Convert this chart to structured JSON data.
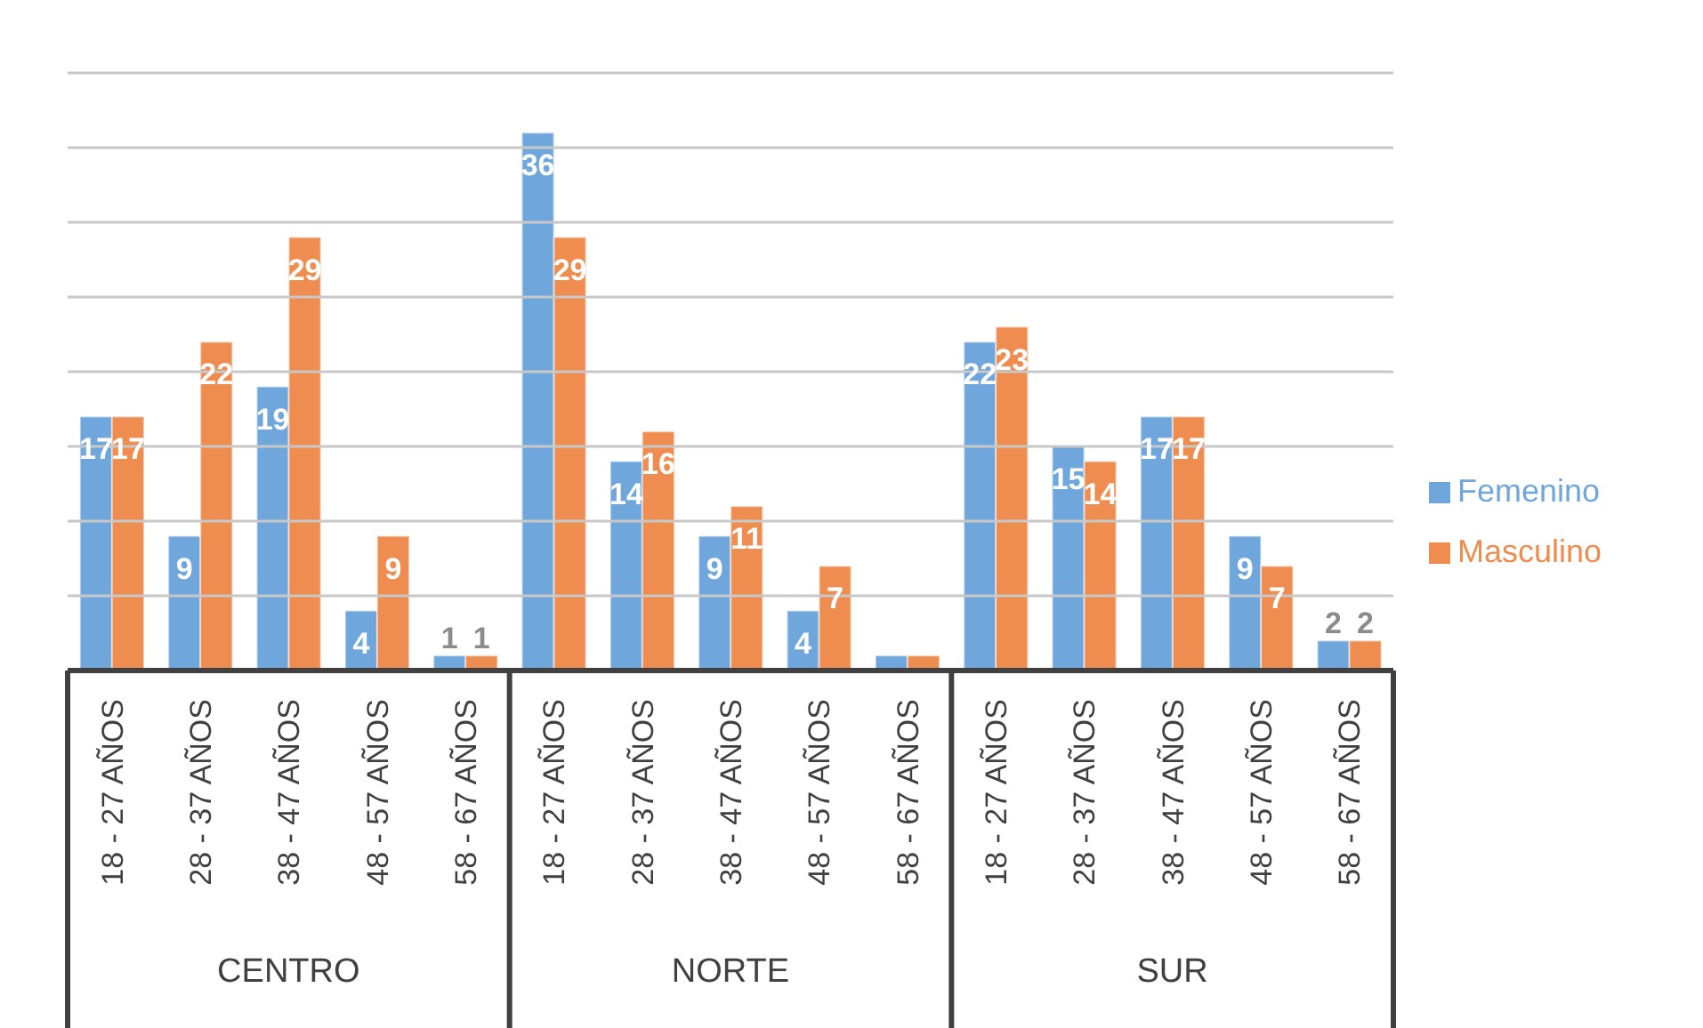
{
  "chart_data": {
    "type": "bar",
    "categories": [
      "18 - 27 AÑOS",
      "28 - 37 AÑOS",
      "38 - 47 AÑOS",
      "48 - 57 AÑOS",
      "58 - 67 AÑOS",
      "18 - 27 AÑOS",
      "28 - 37 AÑOS",
      "38 - 47 AÑOS",
      "48 - 57 AÑOS",
      "58 - 67 AÑOS",
      "18 - 27 AÑOS",
      "28 - 37 AÑOS",
      "38 - 47 AÑOS",
      "48 - 57 AÑOS",
      "58 - 67 AÑOS"
    ],
    "series": [
      {
        "name": "Femenino",
        "color": "#6fa6dc",
        "values": [
          17,
          9,
          19,
          4,
          1,
          36,
          14,
          9,
          4,
          1,
          22,
          15,
          17,
          9,
          2
        ],
        "value_labels": [
          "17",
          "9",
          "19",
          "4",
          "1",
          "36",
          "14",
          "9",
          "4",
          null,
          "22",
          "15",
          "17",
          "9",
          "2"
        ]
      },
      {
        "name": "Masculino",
        "color": "#ef8c4f",
        "values": [
          17,
          22,
          29,
          9,
          1,
          29,
          16,
          11,
          7,
          1,
          23,
          14,
          17,
          7,
          2
        ],
        "value_labels": [
          "17",
          "22",
          "29",
          "9",
          "1",
          "29",
          "16",
          "11",
          "7",
          null,
          "23",
          "14",
          "17",
          "7",
          "2"
        ]
      }
    ],
    "annotations": [
      "CENTRO",
      "NORTE",
      "SUR"
    ],
    "ylim": [
      0,
      40
    ],
    "yticks": [
      {
        "value": 0,
        "label": null
      },
      {
        "value": 5,
        "label": null
      },
      {
        "value": 10,
        "label": null
      },
      {
        "value": 15,
        "label": null
      },
      {
        "value": 20,
        "label": null
      },
      {
        "value": 25,
        "label": null
      },
      {
        "value": 30,
        "label": null
      },
      {
        "value": 35,
        "label": null
      },
      {
        "value": 40,
        "label": null
      }
    ],
    "tick_labels": "x",
    "grid": "y",
    "legend": "right"
  }
}
